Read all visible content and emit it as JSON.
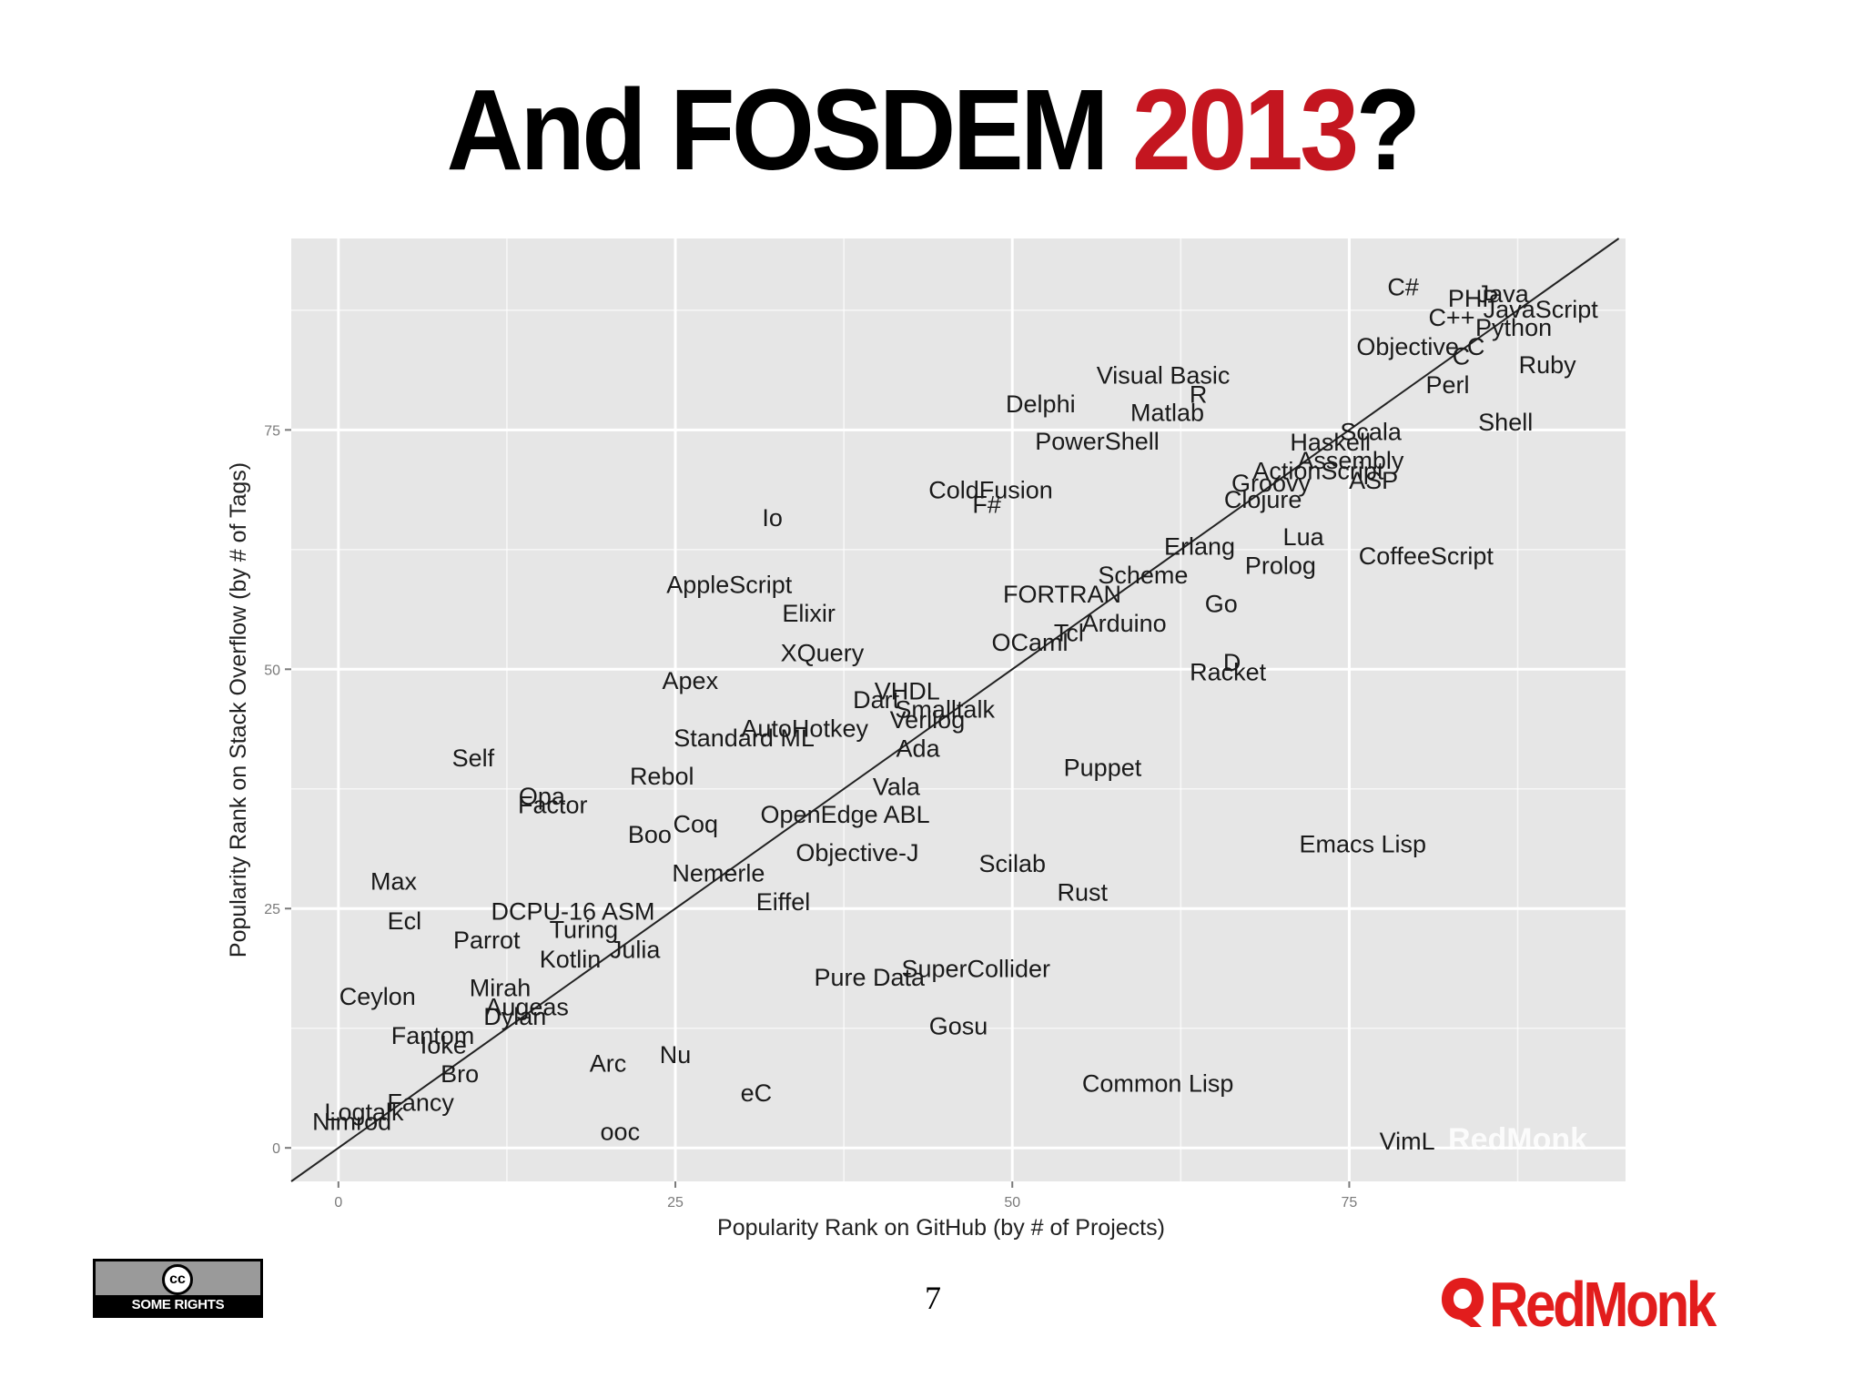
{
  "slide": {
    "title_main": "And FOSDEM ",
    "title_year": "2013",
    "title_end": "?",
    "page_number": "7",
    "license_badge": {
      "symbol": "cc",
      "text": "SOME RIGHTS RESERVED"
    },
    "logo": {
      "icon": "redmonk-logo-icon",
      "text": "RedMonk"
    },
    "colors": {
      "title": "#000000",
      "year": "#c41620",
      "logo": "#e21d1d",
      "panel": "#e6e6e6",
      "grid": "#ffffff"
    }
  },
  "chart_data": {
    "type": "scatter",
    "title": "",
    "xlabel": "Popularity Rank on GitHub (by # of Projects)",
    "ylabel": "Popularity Rank on Stack Overflow (by # of Tags)",
    "xlim": [
      -3.5,
      95.5
    ],
    "ylim": [
      -3.5,
      95
    ],
    "xticks": [
      0,
      25,
      50,
      75
    ],
    "yticks": [
      0,
      25,
      50,
      75
    ],
    "grid": true,
    "trend_line": {
      "slope": 1,
      "intercept": 0
    },
    "watermark": "RedMonk",
    "points": [
      {
        "label": "C#",
        "x": 79,
        "y": 90
      },
      {
        "label": "PHP",
        "x": 84.2,
        "y": 88.8
      },
      {
        "label": "Java",
        "x": 86.4,
        "y": 89.3
      },
      {
        "label": "C++",
        "x": 82.6,
        "y": 86.8
      },
      {
        "label": "JavaScript",
        "x": 89.2,
        "y": 87.7
      },
      {
        "label": "Python",
        "x": 87.2,
        "y": 85.8
      },
      {
        "label": "Objective-C",
        "x": 80.3,
        "y": 83.8
      },
      {
        "label": "C",
        "x": 83.3,
        "y": 82.8
      },
      {
        "label": "Ruby",
        "x": 89.7,
        "y": 81.9
      },
      {
        "label": "Perl",
        "x": 82.3,
        "y": 79.8
      },
      {
        "label": "Visual Basic",
        "x": 61.2,
        "y": 80.8
      },
      {
        "label": "R",
        "x": 63.8,
        "y": 78.8
      },
      {
        "label": "Delphi",
        "x": 52.1,
        "y": 77.8
      },
      {
        "label": "Matlab",
        "x": 61.5,
        "y": 76.9
      },
      {
        "label": "Shell",
        "x": 86.6,
        "y": 75.9
      },
      {
        "label": "Scala",
        "x": 76.6,
        "y": 74.9
      },
      {
        "label": "Haskell",
        "x": 73.6,
        "y": 73.8
      },
      {
        "label": "PowerShell",
        "x": 56.3,
        "y": 73.9
      },
      {
        "label": "Assembly",
        "x": 75.1,
        "y": 71.9
      },
      {
        "label": "ActionScript",
        "x": 72.7,
        "y": 70.8
      },
      {
        "label": "ASP",
        "x": 76.8,
        "y": 69.8
      },
      {
        "label": "Groovy",
        "x": 69.2,
        "y": 69.5
      },
      {
        "label": "ColdFusion",
        "x": 48.4,
        "y": 68.8
      },
      {
        "label": "Clojure",
        "x": 68.6,
        "y": 67.8
      },
      {
        "label": "F#",
        "x": 48.1,
        "y": 67.3
      },
      {
        "label": "Io",
        "x": 32.2,
        "y": 65.9
      },
      {
        "label": "Lua",
        "x": 71.6,
        "y": 63.9
      },
      {
        "label": "Erlang",
        "x": 63.9,
        "y": 62.9
      },
      {
        "label": "CoffeeScript",
        "x": 80.7,
        "y": 61.9
      },
      {
        "label": "Prolog",
        "x": 69.9,
        "y": 60.9
      },
      {
        "label": "Scheme",
        "x": 59.7,
        "y": 59.9
      },
      {
        "label": "AppleScript",
        "x": 29.0,
        "y": 58.9
      },
      {
        "label": "FORTRAN",
        "x": 53.7,
        "y": 57.9
      },
      {
        "label": "Go",
        "x": 65.5,
        "y": 56.9
      },
      {
        "label": "Elixir",
        "x": 34.9,
        "y": 55.9
      },
      {
        "label": "Arduino",
        "x": 58.3,
        "y": 54.9
      },
      {
        "label": "Tcl",
        "x": 54.2,
        "y": 53.9
      },
      {
        "label": "OCaml",
        "x": 51.3,
        "y": 52.9
      },
      {
        "label": "XQuery",
        "x": 35.9,
        "y": 51.8
      },
      {
        "label": "D",
        "x": 66.3,
        "y": 50.8
      },
      {
        "label": "Racket",
        "x": 66.0,
        "y": 49.8
      },
      {
        "label": "VHDL",
        "x": 42.2,
        "y": 47.8
      },
      {
        "label": "Apex",
        "x": 26.1,
        "y": 48.9
      },
      {
        "label": "Dart",
        "x": 39.9,
        "y": 46.9
      },
      {
        "label": "Smalltalk",
        "x": 45.0,
        "y": 45.9
      },
      {
        "label": "Verilog",
        "x": 43.7,
        "y": 44.8
      },
      {
        "label": "AutoHotkey",
        "x": 34.6,
        "y": 43.9
      },
      {
        "label": "Standard ML",
        "x": 30.1,
        "y": 42.9
      },
      {
        "label": "Ada",
        "x": 43.0,
        "y": 41.8
      },
      {
        "label": "Self",
        "x": 10.0,
        "y": 40.8
      },
      {
        "label": "Puppet",
        "x": 56.7,
        "y": 39.8
      },
      {
        "label": "Rebol",
        "x": 24.0,
        "y": 38.9
      },
      {
        "label": "Vala",
        "x": 41.4,
        "y": 37.8
      },
      {
        "label": "Opa",
        "x": 15.1,
        "y": 36.8
      },
      {
        "label": "Factor",
        "x": 15.9,
        "y": 35.9
      },
      {
        "label": "OpenEdge ABL",
        "x": 37.6,
        "y": 34.9
      },
      {
        "label": "Coq",
        "x": 26.5,
        "y": 33.9
      },
      {
        "label": "Boo",
        "x": 23.1,
        "y": 32.8
      },
      {
        "label": "Emacs Lisp",
        "x": 76.0,
        "y": 31.8
      },
      {
        "label": "Objective-J",
        "x": 38.5,
        "y": 30.9
      },
      {
        "label": "Scilab",
        "x": 50.0,
        "y": 29.8
      },
      {
        "label": "Nemerle",
        "x": 28.2,
        "y": 28.8
      },
      {
        "label": "Max",
        "x": 4.1,
        "y": 27.9
      },
      {
        "label": "Rust",
        "x": 55.2,
        "y": 26.8
      },
      {
        "label": "Eiffel",
        "x": 33.0,
        "y": 25.8
      },
      {
        "label": "DCPU-16 ASM",
        "x": 17.4,
        "y": 24.8
      },
      {
        "label": "Ecl",
        "x": 4.9,
        "y": 23.8
      },
      {
        "label": "Turing",
        "x": 18.2,
        "y": 22.9
      },
      {
        "label": "Parrot",
        "x": 11.0,
        "y": 21.8
      },
      {
        "label": "Julia",
        "x": 22.0,
        "y": 20.8
      },
      {
        "label": "Kotlin",
        "x": 17.2,
        "y": 19.8
      },
      {
        "label": "SuperCollider",
        "x": 47.3,
        "y": 18.8
      },
      {
        "label": "Pure Data",
        "x": 39.4,
        "y": 17.9
      },
      {
        "label": "Mirah",
        "x": 12.0,
        "y": 16.8
      },
      {
        "label": "Ceylon",
        "x": 2.9,
        "y": 15.9
      },
      {
        "label": "Augeas",
        "x": 14.0,
        "y": 14.8
      },
      {
        "label": "Dylan",
        "x": 13.1,
        "y": 13.8
      },
      {
        "label": "Gosu",
        "x": 46.0,
        "y": 12.8
      },
      {
        "label": "Fantom",
        "x": 7.0,
        "y": 11.8
      },
      {
        "label": "Ioke",
        "x": 7.8,
        "y": 10.8
      },
      {
        "label": "Nu",
        "x": 25.0,
        "y": 9.8
      },
      {
        "label": "Arc",
        "x": 20.0,
        "y": 8.9
      },
      {
        "label": "Bro",
        "x": 9.0,
        "y": 7.8
      },
      {
        "label": "Common Lisp",
        "x": 60.8,
        "y": 6.8
      },
      {
        "label": "eC",
        "x": 31.0,
        "y": 5.8
      },
      {
        "label": "Fancy",
        "x": 6.1,
        "y": 4.8
      },
      {
        "label": "Logtalk",
        "x": 1.9,
        "y": 3.8
      },
      {
        "label": "Nimrod",
        "x": 1.0,
        "y": 2.8
      },
      {
        "label": "ooc",
        "x": 20.9,
        "y": 1.8
      },
      {
        "label": "VimL",
        "x": 79.3,
        "y": 0.8
      }
    ]
  }
}
